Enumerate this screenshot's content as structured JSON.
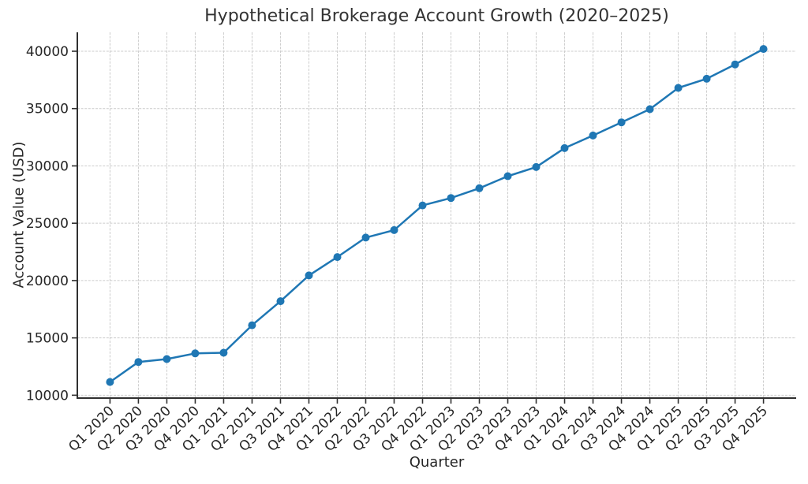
{
  "figure": {
    "title": "Hypothetical Brokerage Account Growth (2020–2025)",
    "xlabel": "Quarter",
    "ylabel": "Account Value (USD)"
  },
  "chart_data": {
    "type": "line",
    "title": "Hypothetical Brokerage Account Growth (2020–2025)",
    "xlabel": "Quarter",
    "ylabel": "Account Value (USD)",
    "categories": [
      "Q1 2020",
      "Q2 2020",
      "Q3 2020",
      "Q4 2020",
      "Q1 2021",
      "Q2 2021",
      "Q3 2021",
      "Q4 2021",
      "Q1 2022",
      "Q2 2022",
      "Q3 2022",
      "Q4 2022",
      "Q1 2023",
      "Q2 2023",
      "Q3 2023",
      "Q4 2023",
      "Q1 2024",
      "Q2 2024",
      "Q3 2024",
      "Q4 2024",
      "Q1 2025",
      "Q2 2025",
      "Q3 2025",
      "Q4 2025"
    ],
    "values": [
      11150,
      12900,
      13150,
      13650,
      13700,
      16100,
      18200,
      20450,
      22050,
      23750,
      24400,
      26550,
      27200,
      28050,
      29100,
      29900,
      31550,
      32650,
      33800,
      34950,
      36800,
      37600,
      38850,
      40200
    ],
    "yticks": [
      10000,
      15000,
      20000,
      25000,
      30000,
      35000,
      40000
    ],
    "ylim": [
      9750,
      41650
    ],
    "grid": true,
    "grid_style": "dashed",
    "legend_position": "none",
    "line_color": "#1f77b4",
    "marker": "circle",
    "grid_color": "#cccccc",
    "spine_color": "#303030",
    "text_color": "#262626",
    "background_color": "#ffffff",
    "x_tick_rotation_deg": 45
  }
}
